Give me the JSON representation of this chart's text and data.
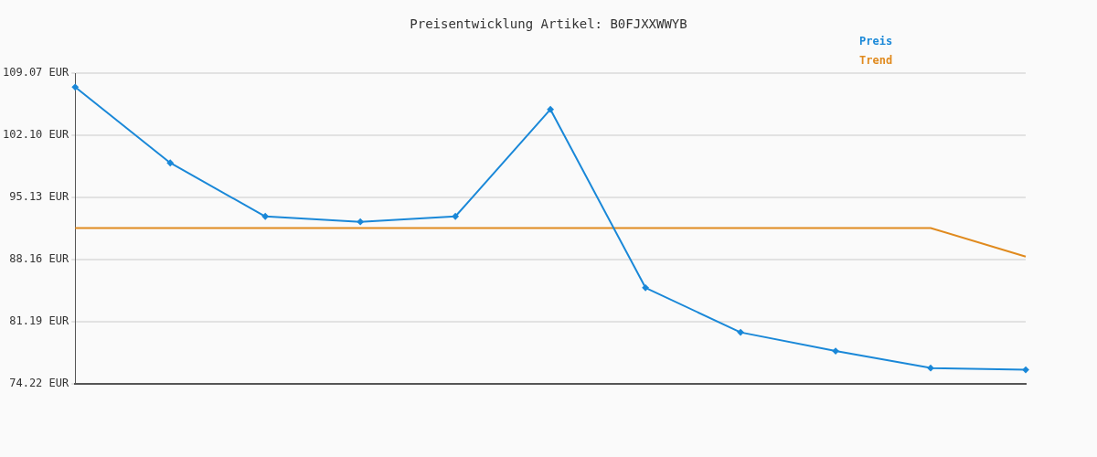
{
  "chart_data": {
    "type": "line",
    "title": "Preisentwicklung Artikel: B0FJXXWWYB",
    "categories": [
      null,
      null,
      null,
      null,
      null,
      null,
      null,
      null,
      null,
      null,
      null
    ],
    "series": [
      {
        "name": "Preis",
        "color": "#1a88d8",
        "values": [
          107.5,
          99.0,
          93.0,
          92.4,
          93.0,
          105.0,
          85.0,
          80.0,
          77.9,
          76.0,
          75.8
        ]
      },
      {
        "name": "Trend",
        "color": "#e08a1e",
        "marker": "none",
        "values": [
          91.7,
          91.7,
          91.7,
          91.7,
          91.7,
          91.7,
          91.7,
          91.7,
          91.7,
          91.7,
          88.5
        ]
      }
    ],
    "ylim": [
      74.22,
      109.07
    ],
    "yticks": [
      {
        "value": 74.22,
        "label": "74.22 EUR"
      },
      {
        "value": 81.19,
        "label": "81.19 EUR"
      },
      {
        "value": 88.16,
        "label": "88.16 EUR"
      },
      {
        "value": 95.13,
        "label": "95.13 EUR"
      },
      {
        "value": 102.1,
        "label": "102.10 EUR"
      },
      {
        "value": 109.07,
        "label": "109.07 EUR"
      }
    ],
    "grid": "y",
    "legend": "top right",
    "tick_labels": "y",
    "marker": "diamond",
    "line_style": "solid"
  }
}
